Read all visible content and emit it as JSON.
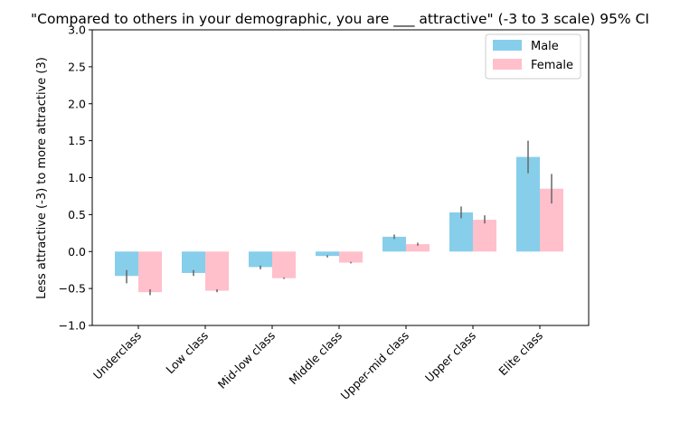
{
  "chart_data": {
    "type": "bar",
    "title": "\"Compared to others in your demographic, you are ___ attractive\" (-3 to 3 scale) 95% CI",
    "xlabel": "",
    "ylabel": "Less attractive (-3) to more attractive (3)",
    "ylim": [
      -1.0,
      3.0
    ],
    "yticks": [
      "−1.0",
      "−0.5",
      "0.0",
      "0.5",
      "1.0",
      "1.5",
      "2.0",
      "2.5",
      "3.0"
    ],
    "ytick_values": [
      -1.0,
      -0.5,
      0.0,
      0.5,
      1.0,
      1.5,
      2.0,
      2.5,
      3.0
    ],
    "categories": [
      "Underclass",
      "Low class",
      "Mid-low class",
      "Middle class",
      "Upper-mid class",
      "Upper class",
      "Elite class"
    ],
    "series": [
      {
        "name": "Male",
        "color": "#87ceeb",
        "values": [
          -0.33,
          -0.29,
          -0.21,
          -0.06,
          0.2,
          0.53,
          1.28
        ],
        "ci": [
          [
            -0.43,
            -0.25
          ],
          [
            -0.33,
            -0.25
          ],
          [
            -0.24,
            -0.19
          ],
          [
            -0.08,
            -0.05
          ],
          [
            0.17,
            0.23
          ],
          [
            0.45,
            0.61
          ],
          [
            1.06,
            1.5
          ]
        ]
      },
      {
        "name": "Female",
        "color": "#ffc0cb",
        "values": [
          -0.55,
          -0.53,
          -0.36,
          -0.15,
          0.1,
          0.43,
          0.85
        ],
        "ci": [
          [
            -0.59,
            -0.51
          ],
          [
            -0.55,
            -0.51
          ],
          [
            -0.37,
            -0.35
          ],
          [
            -0.16,
            -0.14
          ],
          [
            0.08,
            0.12
          ],
          [
            0.38,
            0.49
          ],
          [
            0.65,
            1.05
          ]
        ]
      }
    ],
    "grid": false,
    "legend": "top-right"
  }
}
